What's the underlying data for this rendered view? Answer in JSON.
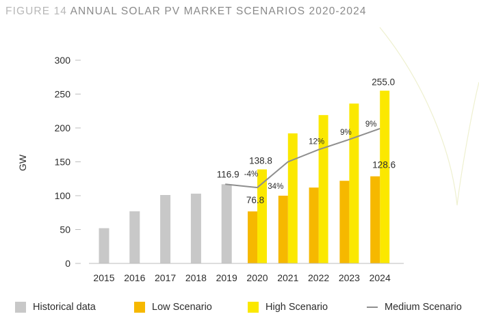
{
  "figure": {
    "number_label": "FIGURE 14",
    "title": "ANNUAL SOLAR PV MARKET SCENARIOS 2020-2024"
  },
  "colors": {
    "historical": "#c8c8c8",
    "low": "#f6b800",
    "high": "#fbe800",
    "medium": "#8e8e8e",
    "axis": "#bdbdbd",
    "text": "#2c2c2c"
  },
  "legend": {
    "historical": "Historical data",
    "low": "Low Scenario",
    "high": "High Scenario",
    "medium": "Medium Scenario"
  },
  "chart_data": {
    "type": "bar",
    "ylabel": "GW",
    "ylim": [
      0,
      300
    ],
    "yticks": [
      0,
      50,
      100,
      150,
      200,
      250,
      300
    ],
    "categories": [
      "2015",
      "2016",
      "2017",
      "2018",
      "2019",
      "2020",
      "2021",
      "2022",
      "2023",
      "2024"
    ],
    "series": [
      {
        "name": "Historical data",
        "kind": "bar",
        "values": [
          52,
          77,
          101,
          103,
          116.9,
          null,
          null,
          null,
          null,
          null
        ]
      },
      {
        "name": "Low Scenario",
        "kind": "bar",
        "values": [
          null,
          null,
          null,
          null,
          null,
          76.8,
          100,
          112,
          122,
          128.6
        ]
      },
      {
        "name": "High Scenario",
        "kind": "bar",
        "values": [
          null,
          null,
          null,
          null,
          null,
          138.8,
          192,
          219,
          236,
          255.0
        ]
      },
      {
        "name": "Medium Scenario",
        "kind": "line",
        "values": [
          null,
          null,
          null,
          null,
          116.9,
          112,
          150,
          168,
          183,
          199
        ]
      }
    ],
    "data_labels": [
      {
        "category": "2019",
        "text": "116.9"
      },
      {
        "category": "2020",
        "text": "138.8"
      },
      {
        "category": "2020",
        "text": "76.8"
      },
      {
        "category": "2024",
        "text": "255.0"
      },
      {
        "category": "2024",
        "text": "128.6"
      }
    ],
    "growth_labels": [
      {
        "category": "2020",
        "text": "-4%"
      },
      {
        "category": "2021",
        "text": "34%"
      },
      {
        "category": "2022",
        "text": "12%"
      },
      {
        "category": "2023",
        "text": "9%"
      },
      {
        "category": "2024",
        "text": "9%"
      }
    ]
  }
}
